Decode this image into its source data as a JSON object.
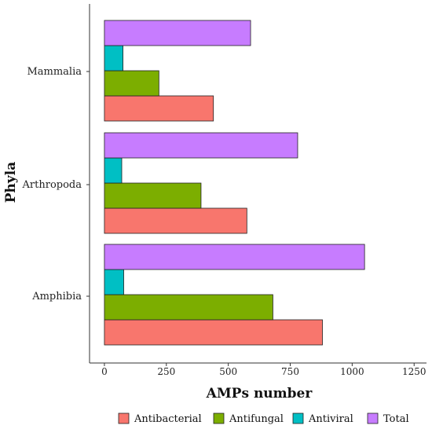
{
  "chart_data": {
    "type": "bar",
    "orientation": "horizontal",
    "categories": [
      "Mammalia",
      "Arthropoda",
      "Amphibia"
    ],
    "series": [
      {
        "name": "Antibacterial",
        "color": "#F8766D",
        "values": [
          440,
          575,
          880
        ]
      },
      {
        "name": "Antifungal",
        "color": "#7CAE00",
        "values": [
          220,
          390,
          680
        ]
      },
      {
        "name": "Antiviral",
        "color": "#00BFC4",
        "values": [
          75,
          70,
          78
        ]
      },
      {
        "name": "Total",
        "color": "#C77CFF",
        "values": [
          590,
          780,
          1050
        ]
      }
    ],
    "xlim": [
      -60,
      1300
    ],
    "xticks": [
      0,
      250,
      500,
      750,
      1000,
      1250
    ],
    "tick_labels": [
      "0",
      "250",
      "500",
      "750",
      "1000",
      "1250"
    ],
    "xlabel": "AMPs number",
    "ylabel": "Phyla",
    "legend_position": "bottom",
    "grid": false
  }
}
